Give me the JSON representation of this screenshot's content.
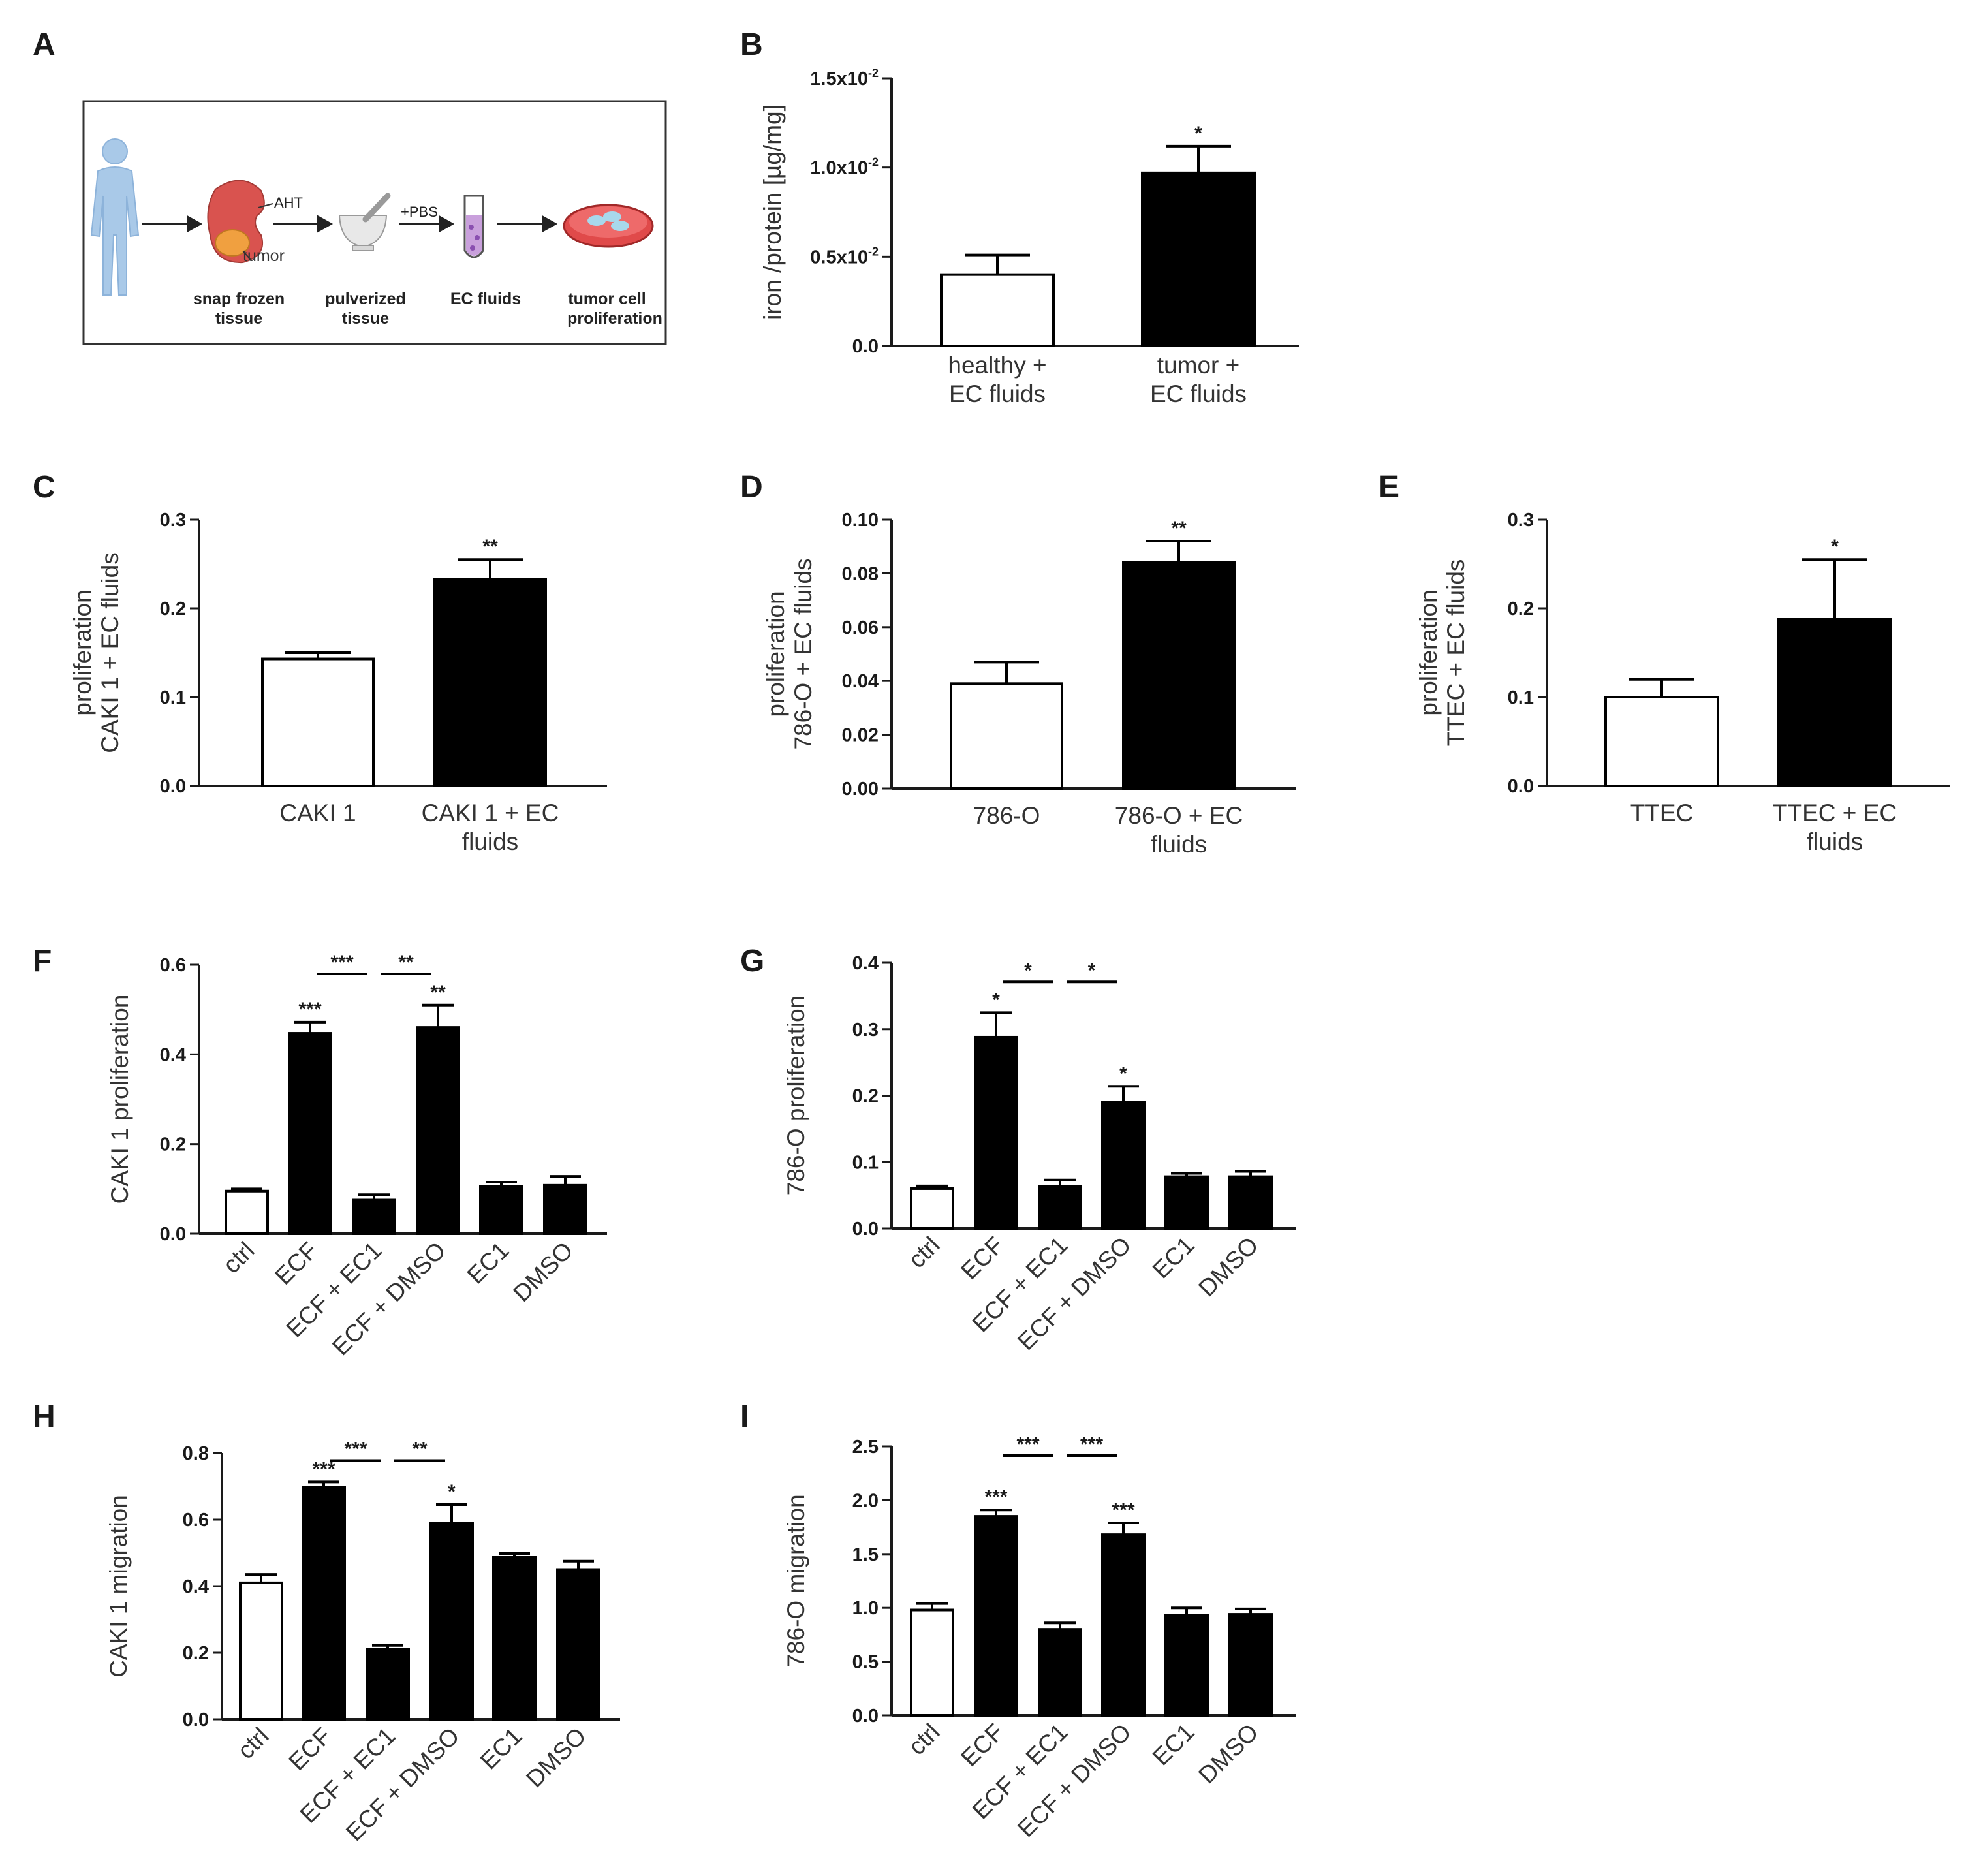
{
  "figure": {
    "panel_labels": [
      "A",
      "B",
      "C",
      "D",
      "E",
      "F",
      "G",
      "H",
      "I"
    ],
    "workflow": {
      "steps": [
        {
          "label1": "snap frozen",
          "label2": "tissue"
        },
        {
          "label1": "pulverized",
          "label2": "tissue"
        },
        {
          "label1": "EC fluids",
          "label2": ""
        },
        {
          "label1": "tumor cell",
          "label2": "proliferation"
        }
      ],
      "annot_aht": "AHT",
      "annot_tumor": "tumor",
      "annot_pbs": "+PBS"
    }
  },
  "chart_data": [
    {
      "panel": "B",
      "type": "bar",
      "ylabel": "iron /protein [µg/mg]",
      "ylim": [
        0,
        0.015
      ],
      "yticks": [
        0,
        0.005,
        0.01,
        0.015
      ],
      "ytick_labels": [
        {
          "base": "0.0",
          "exp": ""
        },
        {
          "base": "0.5x10",
          "exp": "-2"
        },
        {
          "base": "1.0x10",
          "exp": "-2"
        },
        {
          "base": "1.5x10",
          "exp": "-2"
        }
      ],
      "categories": [
        "healthy +\nEC fluids",
        "tumor +\nEC fluids"
      ],
      "values": [
        0.004,
        0.0097
      ],
      "errors": [
        0.0011,
        0.0015
      ],
      "fills": [
        "white",
        "black"
      ],
      "stars": [
        "",
        "*"
      ],
      "brackets": []
    },
    {
      "panel": "C",
      "type": "bar",
      "ylabel": "proliferation\nCAKI 1 + EC fluids",
      "ylim": [
        0,
        0.3
      ],
      "yticks": [
        0,
        0.1,
        0.2,
        0.3
      ],
      "ytick_labels": [
        "0.0",
        "0.1",
        "0.2",
        "0.3"
      ],
      "categories": [
        "CAKI 1",
        "CAKI 1 + EC\nfluids"
      ],
      "values": [
        0.143,
        0.233
      ],
      "errors": [
        0.007,
        0.022
      ],
      "fills": [
        "white",
        "black"
      ],
      "stars": [
        "",
        "**"
      ],
      "brackets": []
    },
    {
      "panel": "D",
      "type": "bar",
      "ylabel": "proliferation\n786-O + EC fluids",
      "ylim": [
        0,
        0.1
      ],
      "yticks": [
        0,
        0.02,
        0.04,
        0.06,
        0.08,
        0.1
      ],
      "ytick_labels": [
        "0.00",
        "0.02",
        "0.04",
        "0.06",
        "0.08",
        "0.10"
      ],
      "categories": [
        "786-O",
        "786-O + EC\nfluids"
      ],
      "values": [
        0.039,
        0.084
      ],
      "errors": [
        0.008,
        0.008
      ],
      "fills": [
        "white",
        "black"
      ],
      "stars": [
        "",
        "**"
      ],
      "brackets": []
    },
    {
      "panel": "E",
      "type": "bar",
      "ylabel": "proliferation\nTTEC + EC fluids",
      "ylim": [
        0,
        0.3
      ],
      "yticks": [
        0,
        0.1,
        0.2,
        0.3
      ],
      "ytick_labels": [
        "0.0",
        "0.1",
        "0.2",
        "0.3"
      ],
      "categories": [
        "TTEC",
        "TTEC + EC\nfluids"
      ],
      "values": [
        0.1,
        0.188
      ],
      "errors": [
        0.02,
        0.067
      ],
      "fills": [
        "white",
        "black"
      ],
      "stars": [
        "",
        "*"
      ],
      "brackets": []
    },
    {
      "panel": "F",
      "type": "bar",
      "ylabel": "CAKI 1 proliferation",
      "ylim": [
        0,
        0.6
      ],
      "yticks": [
        0,
        0.2,
        0.4,
        0.6
      ],
      "ytick_labels": [
        "0.0",
        "0.2",
        "0.4",
        "0.6"
      ],
      "categories": [
        "ctrl",
        "ECF",
        "ECF + EC1",
        "ECF + DMSO",
        "EC1",
        "DMSO"
      ],
      "values": [
        0.095,
        0.447,
        0.075,
        0.46,
        0.105,
        0.108
      ],
      "errors": [
        0.005,
        0.025,
        0.012,
        0.05,
        0.01,
        0.02
      ],
      "fills": [
        "white",
        "black",
        "black",
        "black",
        "black",
        "black"
      ],
      "stars": [
        "",
        "***",
        "",
        "**",
        "",
        ""
      ],
      "brackets": [
        {
          "from": 1,
          "to": 2,
          "y": 0.6,
          "label": "***"
        },
        {
          "from": 2,
          "to": 3,
          "y": 0.6,
          "label": "**"
        }
      ]
    },
    {
      "panel": "G",
      "type": "bar",
      "ylabel": "786-O proliferation",
      "ylim": [
        0,
        0.4
      ],
      "yticks": [
        0,
        0.1,
        0.2,
        0.3,
        0.4
      ],
      "ytick_labels": [
        "0.0",
        "0.1",
        "0.2",
        "0.3",
        "0.4"
      ],
      "categories": [
        "ctrl",
        "ECF",
        "ECF + EC1",
        "ECF + DMSO",
        "EC1",
        "DMSO"
      ],
      "values": [
        0.06,
        0.288,
        0.063,
        0.19,
        0.078,
        0.078
      ],
      "errors": [
        0.004,
        0.037,
        0.01,
        0.024,
        0.005,
        0.008
      ],
      "fills": [
        "white",
        "black",
        "black",
        "black",
        "black",
        "black"
      ],
      "stars": [
        "",
        "*",
        "",
        "*",
        "",
        ""
      ],
      "brackets": [
        {
          "from": 1,
          "to": 2,
          "y": 0.385,
          "label": "*"
        },
        {
          "from": 2,
          "to": 3,
          "y": 0.385,
          "label": "*"
        }
      ]
    },
    {
      "panel": "H",
      "type": "bar",
      "ylabel": "CAKI 1 migration",
      "ylim": [
        0,
        0.8
      ],
      "yticks": [
        0,
        0.2,
        0.4,
        0.6,
        0.8
      ],
      "ytick_labels": [
        "0.0",
        "0.2",
        "0.4",
        "0.6",
        "0.8"
      ],
      "categories": [
        "ctrl",
        "ECF",
        "ECF + EC1",
        "ECF + DMSO",
        "EC1",
        "DMSO"
      ],
      "values": [
        0.41,
        0.698,
        0.21,
        0.59,
        0.488,
        0.45
      ],
      "errors": [
        0.025,
        0.015,
        0.012,
        0.055,
        0.01,
        0.025
      ],
      "fills": [
        "white",
        "black",
        "black",
        "black",
        "black",
        "black"
      ],
      "stars": [
        "",
        "***",
        "",
        "*",
        "",
        ""
      ],
      "brackets": [
        {
          "from": 1,
          "to": 2,
          "y": 0.805,
          "label": "***"
        },
        {
          "from": 2,
          "to": 3,
          "y": 0.805,
          "label": "**"
        }
      ]
    },
    {
      "panel": "I",
      "type": "bar",
      "ylabel": "786-O migration",
      "ylim": [
        0,
        2.5
      ],
      "yticks": [
        0,
        0.5,
        1.0,
        1.5,
        2.0,
        2.5
      ],
      "ytick_labels": [
        "0.0",
        "0.5",
        "1.0",
        "1.5",
        "2.0",
        "2.5"
      ],
      "categories": [
        "ctrl",
        "ECF",
        "ECF + EC1",
        "ECF + DMSO",
        "EC1",
        "DMSO"
      ],
      "values": [
        0.98,
        1.85,
        0.8,
        1.68,
        0.93,
        0.94
      ],
      "errors": [
        0.06,
        0.06,
        0.06,
        0.11,
        0.07,
        0.05
      ],
      "fills": [
        "white",
        "black",
        "black",
        "black",
        "black",
        "black"
      ],
      "stars": [
        "",
        "***",
        "",
        "***",
        "",
        ""
      ],
      "brackets": [
        {
          "from": 1,
          "to": 2,
          "y": 2.5,
          "label": "***"
        },
        {
          "from": 2,
          "to": 3,
          "y": 2.5,
          "label": "***"
        }
      ]
    }
  ]
}
